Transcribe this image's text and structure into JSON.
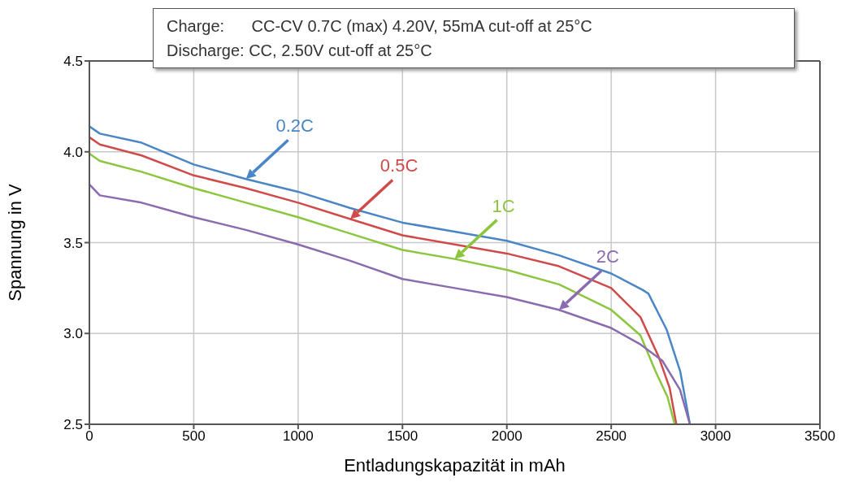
{
  "chart_data": {
    "type": "line",
    "xlabel": "Entladungskapazität in mAh",
    "ylabel": "Spannung in V",
    "xlim": [
      0,
      3500
    ],
    "xticks": [
      0,
      500,
      1000,
      1500,
      2000,
      2500,
      3000,
      3500
    ],
    "ylim": [
      2.5,
      4.5
    ],
    "yticks": [
      2.5,
      {
        "value": 3,
        "label": "3.0"
      },
      3.5,
      {
        "value": 4,
        "label": "4.0"
      },
      4.5
    ],
    "grid": true,
    "legend": false,
    "marker": "none",
    "line_style": "solid",
    "series": [
      {
        "name": "0.2C",
        "color": "#4a86c5",
        "x": [
          0,
          50,
          250,
          500,
          750,
          1000,
          1250,
          1500,
          1750,
          2000,
          2250,
          2500,
          2650,
          2678,
          2766,
          2831,
          2877
        ],
        "values": [
          4.14,
          4.1,
          4.05,
          3.93,
          3.85,
          3.78,
          3.69,
          3.61,
          3.56,
          3.51,
          3.43,
          3.33,
          3.24,
          3.22,
          3.02,
          2.79,
          2.5
        ]
      },
      {
        "name": "0.5C",
        "color": "#d04a4a",
        "x": [
          0,
          50,
          250,
          500,
          750,
          1000,
          1250,
          1500,
          1750,
          2000,
          2250,
          2500,
          2640,
          2728,
          2780,
          2812
        ],
        "values": [
          4.08,
          4.04,
          3.98,
          3.87,
          3.8,
          3.72,
          3.63,
          3.54,
          3.49,
          3.44,
          3.37,
          3.25,
          3.09,
          2.87,
          2.7,
          2.5
        ]
      },
      {
        "name": "1C",
        "color": "#8cc63f",
        "x": [
          0,
          50,
          250,
          500,
          750,
          1000,
          1250,
          1500,
          1750,
          2000,
          2250,
          2500,
          2640,
          2713,
          2770,
          2804
        ],
        "values": [
          3.99,
          3.95,
          3.89,
          3.8,
          3.72,
          3.64,
          3.55,
          3.46,
          3.41,
          3.35,
          3.27,
          3.13,
          2.99,
          2.79,
          2.65,
          2.5
        ]
      },
      {
        "name": "2C",
        "color": "#8a6bb0",
        "x": [
          0,
          50,
          250,
          500,
          750,
          1000,
          1250,
          1500,
          1750,
          2000,
          2250,
          2500,
          2640,
          2745,
          2830,
          2877
        ],
        "values": [
          3.82,
          3.76,
          3.72,
          3.64,
          3.57,
          3.49,
          3.4,
          3.3,
          3.25,
          3.2,
          3.13,
          3.03,
          2.94,
          2.85,
          2.69,
          2.5
        ]
      }
    ],
    "annotations": [
      "Charge:      CC-CV 0.7C (max) 4.20V, 55mA cut-off at 25°C",
      "Discharge: CC, 2.50V cut-off at 25°C"
    ]
  }
}
